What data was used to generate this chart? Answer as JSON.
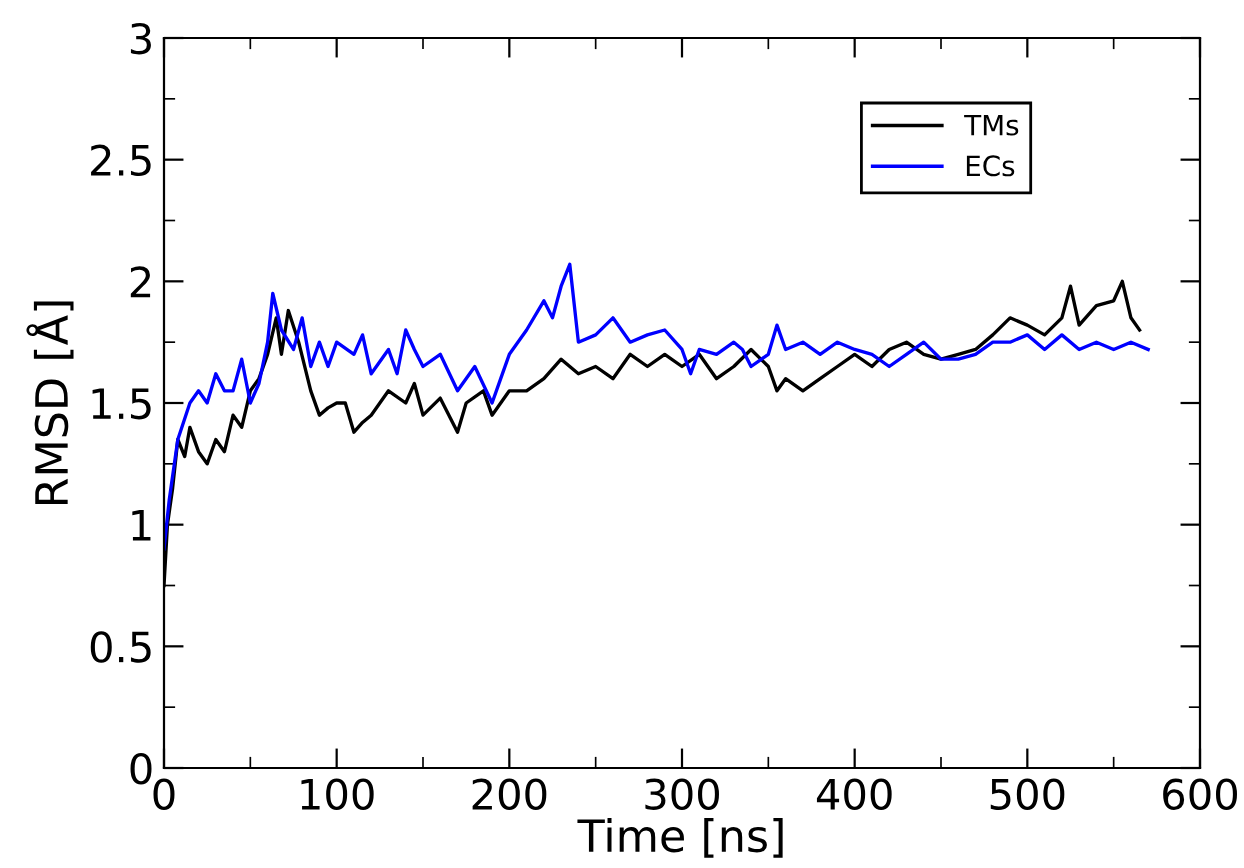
{
  "chart_data": {
    "type": "line",
    "xlabel": "Time [ns]",
    "ylabel": "RMSD [Å]",
    "xlim": [
      0,
      600
    ],
    "ylim": [
      0,
      3
    ],
    "xticks": [
      0,
      100,
      200,
      300,
      400,
      500,
      600
    ],
    "yticks": [
      0,
      0.5,
      1,
      1.5,
      2,
      2.5,
      3
    ],
    "grid": false,
    "legend": "top right",
    "marker": "none",
    "line_style": "solid",
    "series": [
      {
        "name": "TMs",
        "color": "#000000",
        "x": [
          0,
          2,
          5,
          8,
          12,
          15,
          20,
          25,
          30,
          35,
          40,
          45,
          50,
          55,
          60,
          65,
          68,
          72,
          78,
          85,
          90,
          95,
          100,
          105,
          110,
          115,
          120,
          130,
          140,
          145,
          150,
          160,
          170,
          175,
          185,
          190,
          200,
          210,
          220,
          230,
          240,
          250,
          260,
          270,
          280,
          290,
          300,
          310,
          320,
          330,
          340,
          350,
          355,
          360,
          370,
          380,
          390,
          400,
          410,
          420,
          430,
          440,
          450,
          460,
          470,
          480,
          490,
          500,
          510,
          520,
          525,
          530,
          540,
          550,
          555,
          560,
          565
        ],
        "values": [
          0.75,
          1.0,
          1.15,
          1.35,
          1.28,
          1.4,
          1.3,
          1.25,
          1.35,
          1.3,
          1.45,
          1.4,
          1.55,
          1.6,
          1.7,
          1.85,
          1.7,
          1.88,
          1.75,
          1.55,
          1.45,
          1.48,
          1.5,
          1.5,
          1.38,
          1.42,
          1.45,
          1.55,
          1.5,
          1.58,
          1.45,
          1.52,
          1.38,
          1.5,
          1.55,
          1.45,
          1.55,
          1.55,
          1.6,
          1.68,
          1.62,
          1.65,
          1.6,
          1.7,
          1.65,
          1.7,
          1.65,
          1.7,
          1.6,
          1.65,
          1.72,
          1.65,
          1.55,
          1.6,
          1.55,
          1.6,
          1.65,
          1.7,
          1.65,
          1.72,
          1.75,
          1.7,
          1.68,
          1.7,
          1.72,
          1.78,
          1.85,
          1.82,
          1.78,
          1.85,
          1.98,
          1.82,
          1.9,
          1.92,
          2.0,
          1.85,
          1.8
        ]
      },
      {
        "name": "ECs",
        "color": "#0000ff",
        "x": [
          0,
          3,
          8,
          15,
          20,
          25,
          30,
          35,
          40,
          45,
          50,
          55,
          60,
          63,
          68,
          75,
          80,
          85,
          90,
          95,
          100,
          110,
          115,
          120,
          130,
          135,
          140,
          145,
          150,
          160,
          170,
          180,
          190,
          195,
          200,
          210,
          220,
          225,
          230,
          235,
          240,
          250,
          260,
          270,
          280,
          290,
          300,
          305,
          310,
          320,
          330,
          335,
          340,
          350,
          355,
          360,
          370,
          380,
          390,
          400,
          410,
          420,
          430,
          440,
          450,
          460,
          470,
          480,
          490,
          500,
          510,
          520,
          530,
          540,
          550,
          560,
          570
        ],
        "values": [
          0.9,
          1.1,
          1.35,
          1.5,
          1.55,
          1.5,
          1.62,
          1.55,
          1.55,
          1.68,
          1.5,
          1.58,
          1.75,
          1.95,
          1.8,
          1.72,
          1.85,
          1.65,
          1.75,
          1.65,
          1.75,
          1.7,
          1.78,
          1.62,
          1.72,
          1.62,
          1.8,
          1.72,
          1.65,
          1.7,
          1.55,
          1.65,
          1.5,
          1.6,
          1.7,
          1.8,
          1.92,
          1.85,
          1.98,
          2.07,
          1.75,
          1.78,
          1.85,
          1.75,
          1.78,
          1.8,
          1.72,
          1.62,
          1.72,
          1.7,
          1.75,
          1.72,
          1.65,
          1.7,
          1.82,
          1.72,
          1.75,
          1.7,
          1.75,
          1.72,
          1.7,
          1.65,
          1.7,
          1.75,
          1.68,
          1.68,
          1.7,
          1.75,
          1.75,
          1.78,
          1.72,
          1.78,
          1.72,
          1.75,
          1.72,
          1.75,
          1.72
        ]
      }
    ]
  }
}
